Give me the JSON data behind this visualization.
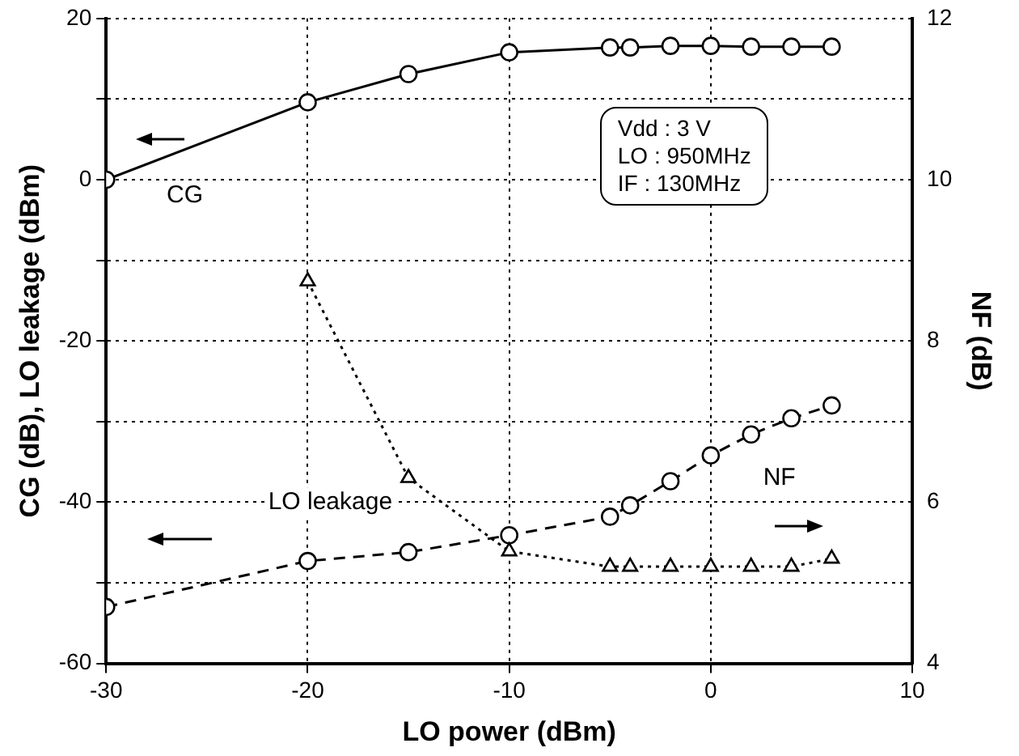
{
  "chart_data": {
    "type": "line",
    "xlabel": "LO power (dBm)",
    "ylabel": "CG (dB), LO leakage (dBm)",
    "y2label": "NF (dB)",
    "x": [
      -30,
      -20,
      -15,
      -10,
      -5,
      -4,
      -2,
      0,
      2,
      4,
      6
    ],
    "xlim": [
      -30,
      10
    ],
    "xticks": [
      -30,
      -20,
      -10,
      0,
      10
    ],
    "ylim": [
      -60,
      20
    ],
    "yticks": [
      -60,
      {
        "value": -50,
        "label": null
      },
      -40,
      {
        "value": -30,
        "label": null
      },
      -20,
      {
        "value": -10,
        "label": null
      },
      0,
      {
        "value": 10,
        "label": null
      },
      20
    ],
    "y2lim": [
      4,
      12
    ],
    "y2ticks": [
      4,
      6,
      8,
      10,
      12
    ],
    "grid": true,
    "legend": false,
    "series": [
      {
        "name": "CG",
        "color": "#000000",
        "marker": "circle",
        "line_style": "solid",
        "values": [
          0,
          9.6,
          13.1,
          15.8,
          16.4,
          16.4,
          16.6,
          16.6,
          16.5,
          16.5,
          16.5
        ]
      },
      {
        "name": "LO leakage",
        "color": "#000000",
        "marker": "triangle",
        "line_style": "dotted",
        "values": [
          null,
          -12.6,
          -37,
          -46.1,
          -48,
          -48,
          -48,
          -48,
          -48,
          -48,
          -47
        ]
      },
      {
        "name": "NF",
        "color": "#000000",
        "marker": "circle",
        "line_style": "dashed",
        "axis": "y2",
        "values": [
          4.7,
          5.27,
          5.38,
          5.59,
          5.82,
          5.96,
          6.26,
          6.58,
          6.84,
          7.04,
          7.2
        ]
      }
    ],
    "annotations": [
      "Vdd : 3 V",
      "LO : 950MHz",
      "IF : 130MHz"
    ]
  }
}
